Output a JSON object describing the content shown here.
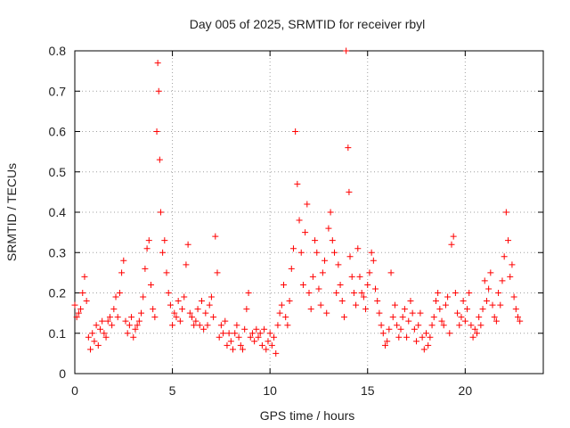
{
  "chart_data": {
    "type": "scatter",
    "title": "Day 005 of 2025, SRMTID for receiver rbyl",
    "xlabel": "GPS time / hours",
    "ylabel": "SRMTID / TECUs",
    "xlim": [
      0,
      24
    ],
    "ylim": [
      0,
      0.8
    ],
    "xticks": [
      0,
      5,
      10,
      15,
      20
    ],
    "yticks": [
      0,
      0.1,
      0.2,
      0.3,
      0.4,
      0.5,
      0.6,
      0.7,
      0.8
    ],
    "grid": true,
    "marker": "+",
    "color": "#ff0000",
    "series": [
      {
        "name": "SRMTID",
        "x": [
          0.0,
          0.1,
          0.2,
          0.3,
          0.4,
          0.5,
          0.6,
          0.7,
          0.8,
          0.9,
          1.0,
          1.1,
          1.2,
          1.3,
          1.4,
          1.5,
          1.6,
          1.7,
          1.8,
          1.9,
          2.0,
          2.1,
          2.2,
          2.3,
          2.4,
          2.5,
          2.6,
          2.7,
          2.8,
          2.9,
          3.0,
          3.1,
          3.2,
          3.3,
          3.4,
          3.5,
          3.6,
          3.7,
          3.8,
          3.9,
          4.0,
          4.1,
          4.2,
          4.25,
          4.3,
          4.35,
          4.4,
          4.5,
          4.6,
          4.7,
          4.8,
          4.9,
          5.0,
          5.1,
          5.2,
          5.3,
          5.4,
          5.5,
          5.6,
          5.7,
          5.8,
          5.9,
          6.0,
          6.1,
          6.2,
          6.3,
          6.4,
          6.5,
          6.6,
          6.7,
          6.8,
          6.9,
          7.0,
          7.1,
          7.2,
          7.3,
          7.4,
          7.5,
          7.6,
          7.7,
          7.8,
          7.9,
          8.0,
          8.1,
          8.2,
          8.3,
          8.4,
          8.5,
          8.6,
          8.7,
          8.8,
          8.9,
          9.0,
          9.1,
          9.2,
          9.3,
          9.4,
          9.5,
          9.6,
          9.7,
          9.8,
          9.9,
          10.0,
          10.1,
          10.2,
          10.3,
          10.4,
          10.5,
          10.6,
          10.7,
          10.8,
          10.9,
          11.0,
          11.1,
          11.2,
          11.3,
          11.4,
          11.5,
          11.6,
          11.7,
          11.8,
          11.9,
          12.0,
          12.1,
          12.2,
          12.3,
          12.4,
          12.5,
          12.6,
          12.7,
          12.8,
          12.9,
          13.0,
          13.1,
          13.2,
          13.3,
          13.4,
          13.5,
          13.6,
          13.7,
          13.8,
          13.9,
          14.0,
          14.05,
          14.1,
          14.2,
          14.3,
          14.4,
          14.5,
          14.6,
          14.7,
          14.8,
          14.9,
          15.0,
          15.1,
          15.2,
          15.3,
          15.4,
          15.5,
          15.6,
          15.7,
          15.8,
          15.9,
          16.0,
          16.1,
          16.2,
          16.3,
          16.4,
          16.5,
          16.6,
          16.7,
          16.8,
          16.9,
          17.0,
          17.1,
          17.2,
          17.3,
          17.4,
          17.5,
          17.6,
          17.7,
          17.8,
          17.9,
          18.0,
          18.1,
          18.2,
          18.3,
          18.4,
          18.5,
          18.6,
          18.7,
          18.8,
          18.9,
          19.0,
          19.1,
          19.2,
          19.3,
          19.4,
          19.5,
          19.6,
          19.7,
          19.8,
          19.9,
          20.0,
          20.1,
          20.2,
          20.3,
          20.4,
          20.5,
          20.6,
          20.7,
          20.8,
          20.9,
          21.0,
          21.1,
          21.2,
          21.3,
          21.4,
          21.5,
          21.6,
          21.7,
          21.8,
          21.9,
          22.0,
          22.1,
          22.2,
          22.3,
          22.4,
          22.5,
          22.6,
          22.7,
          22.8
        ],
        "y": [
          0.17,
          0.14,
          0.15,
          0.16,
          0.2,
          0.24,
          0.18,
          0.09,
          0.06,
          0.1,
          0.08,
          0.12,
          0.07,
          0.11,
          0.13,
          0.1,
          0.09,
          0.13,
          0.14,
          0.12,
          0.16,
          0.19,
          0.14,
          0.2,
          0.25,
          0.28,
          0.13,
          0.1,
          0.12,
          0.14,
          0.09,
          0.11,
          0.12,
          0.13,
          0.15,
          0.19,
          0.26,
          0.31,
          0.33,
          0.22,
          0.16,
          0.14,
          0.6,
          0.77,
          0.7,
          0.53,
          0.4,
          0.3,
          0.33,
          0.25,
          0.2,
          0.17,
          0.12,
          0.15,
          0.14,
          0.18,
          0.13,
          0.16,
          0.19,
          0.27,
          0.32,
          0.15,
          0.14,
          0.12,
          0.13,
          0.16,
          0.12,
          0.18,
          0.11,
          0.15,
          0.12,
          0.17,
          0.19,
          0.14,
          0.34,
          0.25,
          0.09,
          0.12,
          0.1,
          0.13,
          0.07,
          0.1,
          0.08,
          0.06,
          0.1,
          0.12,
          0.09,
          0.07,
          0.06,
          0.11,
          0.16,
          0.2,
          0.09,
          0.1,
          0.08,
          0.11,
          0.09,
          0.1,
          0.07,
          0.11,
          0.06,
          0.08,
          0.1,
          0.07,
          0.09,
          0.05,
          0.12,
          0.15,
          0.17,
          0.22,
          0.14,
          0.12,
          0.18,
          0.26,
          0.31,
          0.6,
          0.47,
          0.38,
          0.3,
          0.22,
          0.35,
          0.42,
          0.2,
          0.16,
          0.24,
          0.33,
          0.3,
          0.21,
          0.17,
          0.25,
          0.28,
          0.15,
          0.36,
          0.4,
          0.33,
          0.3,
          0.2,
          0.27,
          0.22,
          0.18,
          0.14,
          0.8,
          0.56,
          0.45,
          0.29,
          0.24,
          0.2,
          0.17,
          0.31,
          0.24,
          0.2,
          0.19,
          0.16,
          0.22,
          0.25,
          0.3,
          0.28,
          0.21,
          0.18,
          0.15,
          0.12,
          0.1,
          0.07,
          0.08,
          0.11,
          0.25,
          0.14,
          0.17,
          0.12,
          0.09,
          0.11,
          0.14,
          0.16,
          0.09,
          0.13,
          0.18,
          0.15,
          0.11,
          0.08,
          0.12,
          0.15,
          0.09,
          0.06,
          0.1,
          0.07,
          0.09,
          0.12,
          0.14,
          0.18,
          0.2,
          0.16,
          0.13,
          0.12,
          0.17,
          0.19,
          0.1,
          0.32,
          0.34,
          0.2,
          0.15,
          0.12,
          0.14,
          0.18,
          0.13,
          0.16,
          0.2,
          0.12,
          0.09,
          0.11,
          0.1,
          0.14,
          0.12,
          0.16,
          0.23,
          0.18,
          0.21,
          0.25,
          0.17,
          0.14,
          0.13,
          0.2,
          0.17,
          0.23,
          0.29,
          0.4,
          0.33,
          0.24,
          0.27,
          0.19,
          0.16,
          0.14,
          0.13
        ]
      }
    ]
  }
}
